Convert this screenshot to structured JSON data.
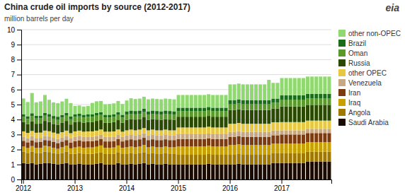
{
  "chart_data": {
    "type": "bar",
    "stacked": true,
    "title": "China crude oil imports by source (2012-2017)",
    "subtitle": "million barrels per day",
    "annotations": [
      {
        "text": "eia"
      }
    ],
    "categories": [
      "2012",
      null,
      null,
      null,
      null,
      null,
      null,
      null,
      null,
      null,
      null,
      null,
      "2013",
      null,
      null,
      null,
      null,
      null,
      null,
      null,
      null,
      null,
      null,
      null,
      "2014",
      null,
      null,
      null,
      null,
      null,
      null,
      null,
      null,
      null,
      null,
      null,
      "2015",
      null,
      null,
      null,
      null,
      null,
      null,
      null,
      null,
      null,
      null,
      null,
      "2016",
      null,
      null,
      null,
      null,
      null,
      null,
      null,
      null,
      null,
      null,
      null,
      "2017",
      null,
      null,
      null,
      null,
      null,
      null,
      null,
      null,
      null,
      null,
      null
    ],
    "series": [
      {
        "name": "Saudi Arabia",
        "color": "#1a0a00",
        "values": [
          1.1,
          1.05,
          1.1,
          1.0,
          1.05,
          1.1,
          1.1,
          1.05,
          1.0,
          1.05,
          1.1,
          1.0,
          1.0,
          1.05,
          1.0,
          1.0,
          1.0,
          1.05,
          1.1,
          1.0,
          1.0,
          1.0,
          1.1,
          1.0,
          1.0,
          1.05,
          1.0,
          1.05,
          1.1,
          1.0,
          1.05,
          1.0,
          1.0,
          1.05,
          1.0,
          1.0,
          1.0,
          1.0,
          1.0,
          1.0,
          1.0,
          1.0,
          1.0,
          1.05,
          1.0,
          1.0,
          1.0,
          1.0,
          1.0,
          1.0,
          1.05,
          1.0,
          1.0,
          1.0,
          1.0,
          1.0,
          1.0,
          1.0,
          1.1,
          1.1,
          1.1,
          1.1,
          1.1,
          1.1,
          1.1,
          1.1,
          1.2,
          1.2,
          1.2,
          1.2,
          1.2,
          1.2
        ]
      },
      {
        "name": "Angola",
        "color": "#a07800",
        "values": [
          0.75,
          0.7,
          0.75,
          0.75,
          0.72,
          0.75,
          0.73,
          0.72,
          0.7,
          0.72,
          0.75,
          0.72,
          0.72,
          0.72,
          0.7,
          0.72,
          0.72,
          0.72,
          0.72,
          0.7,
          0.7,
          0.72,
          0.72,
          0.7,
          0.7,
          0.7,
          0.7,
          0.7,
          0.72,
          0.7,
          0.7,
          0.7,
          0.7,
          0.7,
          0.7,
          0.7,
          0.65,
          0.65,
          0.65,
          0.65,
          0.65,
          0.65,
          0.65,
          0.65,
          0.65,
          0.65,
          0.65,
          0.65,
          0.65,
          0.65,
          0.65,
          0.65,
          0.65,
          0.65,
          0.65,
          0.65,
          0.65,
          0.65,
          0.65,
          0.65,
          0.65,
          0.65,
          0.65,
          0.65,
          0.65,
          0.65,
          0.65,
          0.65,
          0.65,
          0.65,
          0.65,
          0.65
        ]
      },
      {
        "name": "Iraq",
        "color": "#c8a000",
        "values": [
          0.35,
          0.35,
          0.38,
          0.36,
          0.35,
          0.4,
          0.38,
          0.35,
          0.35,
          0.38,
          0.4,
          0.36,
          0.42,
          0.42,
          0.42,
          0.42,
          0.42,
          0.42,
          0.45,
          0.42,
          0.42,
          0.42,
          0.45,
          0.42,
          0.45,
          0.45,
          0.45,
          0.45,
          0.48,
          0.45,
          0.45,
          0.45,
          0.45,
          0.45,
          0.45,
          0.45,
          0.55,
          0.55,
          0.55,
          0.55,
          0.55,
          0.55,
          0.55,
          0.55,
          0.55,
          0.55,
          0.55,
          0.55,
          0.65,
          0.65,
          0.65,
          0.65,
          0.65,
          0.65,
          0.65,
          0.65,
          0.65,
          0.65,
          0.65,
          0.65,
          0.65,
          0.65,
          0.65,
          0.65,
          0.65,
          0.65,
          0.65,
          0.65,
          0.65,
          0.65,
          0.65,
          0.65
        ]
      },
      {
        "name": "Iran",
        "color": "#7b3a10",
        "values": [
          0.38,
          0.38,
          0.38,
          0.38,
          0.38,
          0.38,
          0.38,
          0.38,
          0.38,
          0.38,
          0.38,
          0.38,
          0.42,
          0.42,
          0.42,
          0.42,
          0.42,
          0.42,
          0.42,
          0.42,
          0.42,
          0.42,
          0.42,
          0.42,
          0.48,
          0.48,
          0.48,
          0.48,
          0.48,
          0.48,
          0.48,
          0.48,
          0.48,
          0.48,
          0.48,
          0.48,
          0.5,
          0.5,
          0.5,
          0.5,
          0.5,
          0.5,
          0.5,
          0.5,
          0.5,
          0.5,
          0.5,
          0.5,
          0.55,
          0.55,
          0.55,
          0.55,
          0.55,
          0.55,
          0.55,
          0.55,
          0.55,
          0.55,
          0.55,
          0.55,
          0.6,
          0.6,
          0.6,
          0.6,
          0.6,
          0.6,
          0.6,
          0.6,
          0.6,
          0.6,
          0.6,
          0.6
        ]
      },
      {
        "name": "Venezuela",
        "color": "#c8a882",
        "values": [
          0.28,
          0.28,
          0.28,
          0.28,
          0.28,
          0.28,
          0.28,
          0.28,
          0.28,
          0.28,
          0.28,
          0.28,
          0.3,
          0.3,
          0.3,
          0.3,
          0.3,
          0.3,
          0.3,
          0.3,
          0.3,
          0.3,
          0.3,
          0.3,
          0.3,
          0.3,
          0.3,
          0.3,
          0.3,
          0.3,
          0.3,
          0.3,
          0.3,
          0.3,
          0.3,
          0.3,
          0.32,
          0.32,
          0.32,
          0.32,
          0.32,
          0.32,
          0.32,
          0.32,
          0.32,
          0.32,
          0.32,
          0.32,
          0.32,
          0.32,
          0.32,
          0.32,
          0.32,
          0.32,
          0.32,
          0.32,
          0.32,
          0.32,
          0.32,
          0.32,
          0.28,
          0.28,
          0.28,
          0.28,
          0.28,
          0.28,
          0.28,
          0.28,
          0.28,
          0.28,
          0.28,
          0.28
        ]
      },
      {
        "name": "other OPEC",
        "color": "#e8c840",
        "values": [
          0.35,
          0.35,
          0.35,
          0.35,
          0.35,
          0.35,
          0.35,
          0.35,
          0.35,
          0.35,
          0.35,
          0.35,
          0.35,
          0.35,
          0.35,
          0.35,
          0.35,
          0.35,
          0.35,
          0.35,
          0.35,
          0.35,
          0.35,
          0.35,
          0.35,
          0.35,
          0.35,
          0.35,
          0.35,
          0.35,
          0.35,
          0.35,
          0.35,
          0.35,
          0.35,
          0.35,
          0.45,
          0.45,
          0.45,
          0.45,
          0.45,
          0.45,
          0.45,
          0.45,
          0.45,
          0.45,
          0.45,
          0.45,
          0.55,
          0.55,
          0.55,
          0.55,
          0.55,
          0.55,
          0.55,
          0.55,
          0.55,
          0.55,
          0.55,
          0.55,
          0.55,
          0.55,
          0.55,
          0.55,
          0.55,
          0.55,
          0.55,
          0.55,
          0.55,
          0.55,
          0.55,
          0.55
        ]
      },
      {
        "name": "Russia",
        "color": "#2a4a00",
        "values": [
          0.62,
          0.58,
          0.65,
          0.6,
          0.6,
          0.65,
          0.62,
          0.58,
          0.6,
          0.62,
          0.65,
          0.58,
          0.62,
          0.6,
          0.6,
          0.62,
          0.62,
          0.65,
          0.62,
          0.6,
          0.6,
          0.62,
          0.62,
          0.6,
          0.7,
          0.7,
          0.72,
          0.7,
          0.72,
          0.7,
          0.7,
          0.72,
          0.7,
          0.7,
          0.72,
          0.7,
          0.72,
          0.72,
          0.72,
          0.72,
          0.72,
          0.72,
          0.72,
          0.72,
          0.72,
          0.72,
          0.72,
          0.72,
          0.92,
          0.92,
          0.92,
          0.92,
          0.92,
          0.92,
          0.92,
          0.92,
          0.92,
          0.92,
          0.92,
          0.92,
          1.05,
          1.05,
          1.05,
          1.05,
          1.05,
          1.05,
          1.05,
          1.05,
          1.05,
          1.05,
          1.05,
          1.05
        ]
      },
      {
        "name": "Oman",
        "color": "#5a9a2a",
        "values": [
          0.35,
          0.35,
          0.35,
          0.35,
          0.35,
          0.35,
          0.35,
          0.35,
          0.35,
          0.35,
          0.35,
          0.35,
          0.35,
          0.35,
          0.35,
          0.35,
          0.35,
          0.35,
          0.35,
          0.35,
          0.35,
          0.35,
          0.35,
          0.35,
          0.35,
          0.35,
          0.35,
          0.35,
          0.35,
          0.35,
          0.35,
          0.35,
          0.35,
          0.35,
          0.35,
          0.35,
          0.38,
          0.38,
          0.38,
          0.38,
          0.38,
          0.38,
          0.38,
          0.38,
          0.38,
          0.38,
          0.38,
          0.38,
          0.38,
          0.38,
          0.38,
          0.38,
          0.38,
          0.38,
          0.38,
          0.38,
          0.38,
          0.38,
          0.38,
          0.38,
          0.42,
          0.42,
          0.42,
          0.42,
          0.42,
          0.42,
          0.42,
          0.42,
          0.42,
          0.42,
          0.42,
          0.42
        ]
      },
      {
        "name": "Brazil",
        "color": "#1a6e1a",
        "values": [
          0.18,
          0.18,
          0.18,
          0.18,
          0.18,
          0.18,
          0.18,
          0.18,
          0.18,
          0.18,
          0.18,
          0.18,
          0.18,
          0.18,
          0.18,
          0.18,
          0.18,
          0.18,
          0.18,
          0.18,
          0.18,
          0.18,
          0.18,
          0.18,
          0.22,
          0.22,
          0.22,
          0.22,
          0.22,
          0.22,
          0.22,
          0.22,
          0.22,
          0.22,
          0.22,
          0.22,
          0.22,
          0.22,
          0.22,
          0.22,
          0.22,
          0.22,
          0.22,
          0.22,
          0.22,
          0.22,
          0.22,
          0.22,
          0.28,
          0.28,
          0.28,
          0.28,
          0.28,
          0.28,
          0.28,
          0.28,
          0.28,
          0.28,
          0.28,
          0.28,
          0.32,
          0.32,
          0.32,
          0.32,
          0.32,
          0.32,
          0.32,
          0.32,
          0.32,
          0.32,
          0.32,
          0.32
        ]
      },
      {
        "name": "other non-OPEC",
        "color": "#90d870",
        "values": [
          1.05,
          0.95,
          1.35,
          0.9,
          0.95,
          1.2,
          0.95,
          0.9,
          0.9,
          0.9,
          0.95,
          0.9,
          0.55,
          0.55,
          0.55,
          0.55,
          0.75,
          0.78,
          0.75,
          0.7,
          0.72,
          0.72,
          0.75,
          0.72,
          0.72,
          0.82,
          0.8,
          0.8,
          0.8,
          0.8,
          0.8,
          0.8,
          0.8,
          0.8,
          0.8,
          0.8,
          0.85,
          0.85,
          0.85,
          0.85,
          0.85,
          0.85,
          0.85,
          0.85,
          0.85,
          0.85,
          0.85,
          0.85,
          1.05,
          1.05,
          1.05,
          1.05,
          1.05,
          1.05,
          1.05,
          1.05,
          1.05,
          1.35,
          1.05,
          1.05,
          1.15,
          1.15,
          1.15,
          1.15,
          1.15,
          1.15,
          1.15,
          1.15,
          1.15,
          1.15,
          1.15,
          1.15
        ]
      }
    ],
    "ylim": [
      0,
      10
    ],
    "yticks": [
      0,
      1,
      2,
      3,
      4,
      5,
      6,
      7,
      8,
      9,
      10
    ],
    "grid": true,
    "legend": "upper right"
  }
}
